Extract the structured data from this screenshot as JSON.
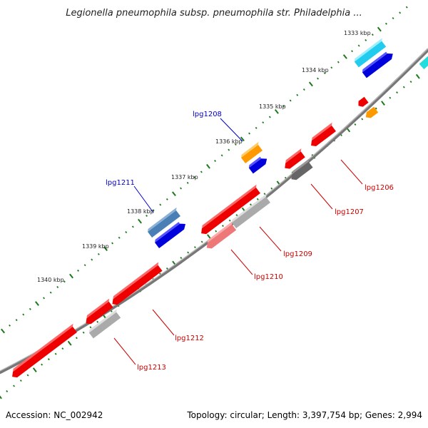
{
  "title": "Legionella pneumophila subsp. pneumophila str. Philadelphia ...",
  "footer": {
    "accession": "Accession: NC_002942",
    "topology": "Topology: circular; Length: 3,397,754 bp; Genes: 2,994"
  },
  "ruler_labels": [
    "1333 kbp",
    "1334 kbp",
    "1335 kbp",
    "1336 kbp",
    "1337 kbp",
    "1338 kbp",
    "1339 kbp",
    "1340 kbp"
  ],
  "gene_labels": [
    {
      "name": "lpg1208",
      "color": "#0000cc"
    },
    {
      "name": "lpg1211",
      "color": "#0000cc"
    },
    {
      "name": "lpg1206",
      "color": "#cc0000"
    },
    {
      "name": "lpg1207",
      "color": "#cc0000"
    },
    {
      "name": "lpg1209",
      "color": "#cc0000"
    },
    {
      "name": "lpg1210",
      "color": "#cc0000"
    },
    {
      "name": "lpg1212",
      "color": "#cc0000"
    },
    {
      "name": "lpg1213",
      "color": "#cc0000"
    }
  ],
  "colors": {
    "backbone": "#8a8a8a",
    "tick": "#1a7a1a",
    "red": "#ee0000",
    "blue": "#0000dd",
    "cyan": "#22ccee",
    "orange": "#ff9900",
    "steel": "#4a7fb5",
    "gray": "#aaaaaa",
    "darkgray": "#666666",
    "pink": "#ee7777"
  }
}
